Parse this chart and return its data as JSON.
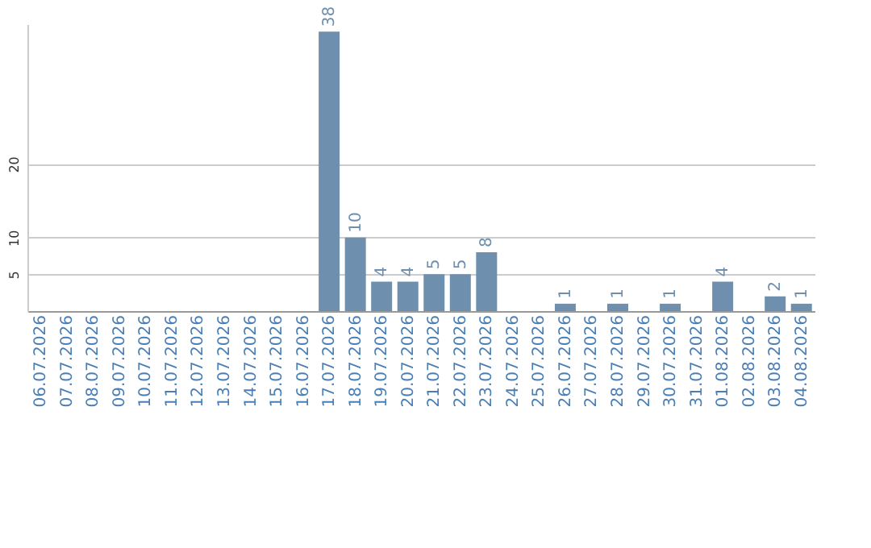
{
  "chart_data": {
    "type": "bar",
    "categories": [
      "06.07.2026",
      "07.07.2026",
      "08.07.2026",
      "09.07.2026",
      "10.07.2026",
      "11.07.2026",
      "12.07.2026",
      "13.07.2026",
      "14.07.2026",
      "15.07.2026",
      "16.07.2026",
      "17.07.2026",
      "18.07.2026",
      "19.07.2026",
      "20.07.2026",
      "21.07.2026",
      "22.07.2026",
      "23.07.2026",
      "24.07.2026",
      "25.07.2026",
      "26.07.2026",
      "27.07.2026",
      "28.07.2026",
      "29.07.2026",
      "30.07.2026",
      "31.07.2026",
      "01.08.2026",
      "02.08.2026",
      "03.08.2026",
      "04.08.2026"
    ],
    "values": [
      0,
      0,
      0,
      0,
      0,
      0,
      0,
      0,
      0,
      0,
      0,
      38,
      10,
      4,
      4,
      5,
      5,
      8,
      0,
      0,
      1,
      0,
      1,
      0,
      1,
      0,
      4,
      0,
      2,
      1
    ],
    "value_labels": [
      null,
      null,
      null,
      null,
      null,
      null,
      null,
      null,
      null,
      null,
      null,
      "38",
      "10",
      "4",
      "4",
      "5",
      "5",
      "8",
      null,
      null,
      "1",
      null,
      "1",
      null,
      "1",
      null,
      "4",
      null,
      "2",
      "1"
    ],
    "color": "#6e8fae",
    "ylim": [
      0,
      39
    ],
    "yticks": [
      5,
      10,
      20
    ],
    "grid": "y"
  }
}
